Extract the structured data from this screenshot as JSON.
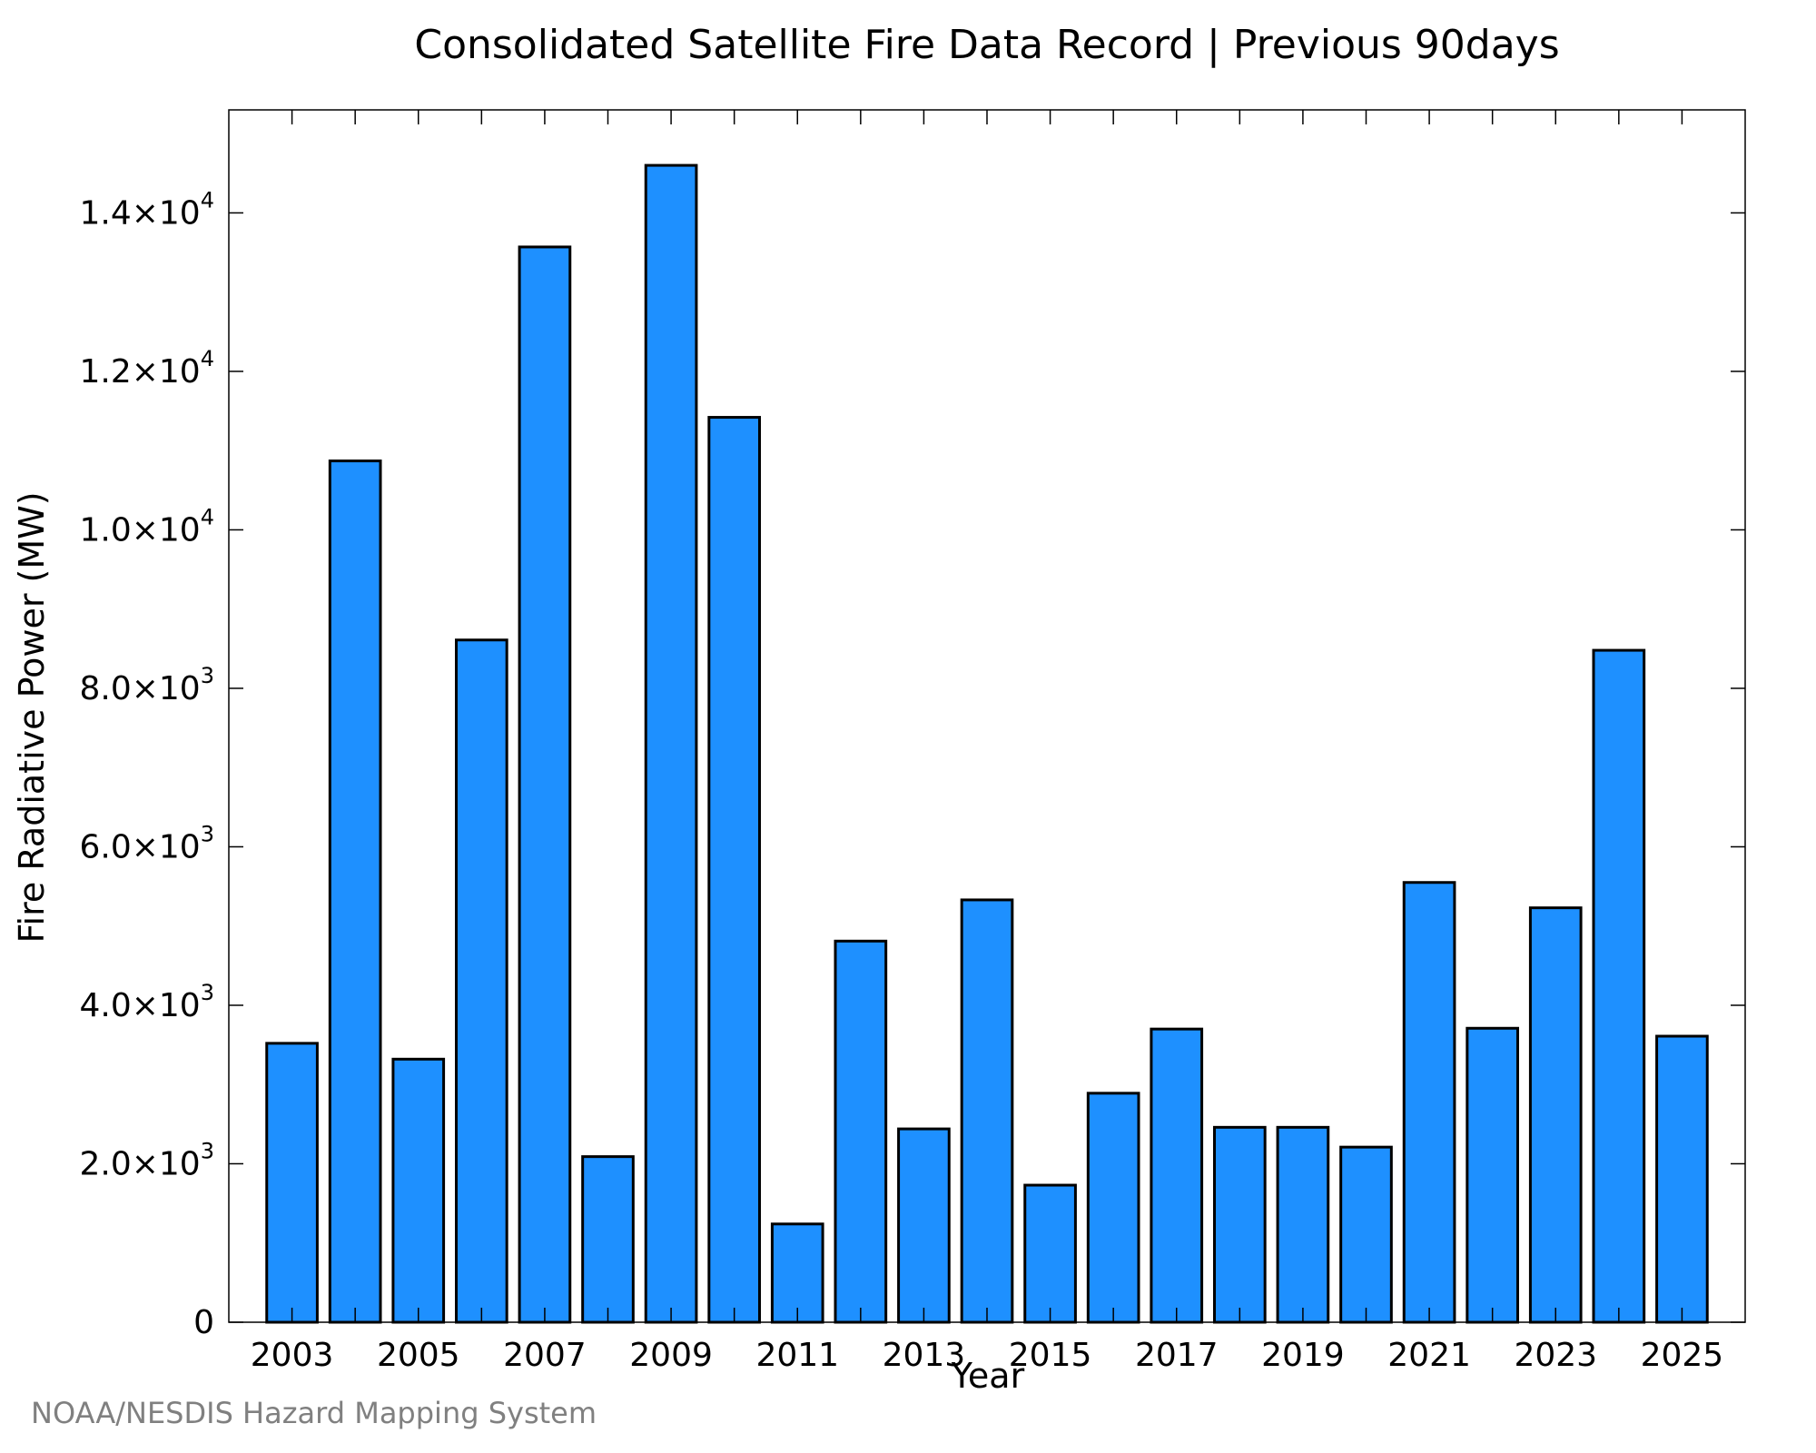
{
  "chart_data": {
    "type": "bar",
    "title": "Consolidated Satellite Fire Data Record | Previous 90days",
    "xlabel": "Year",
    "ylabel": "Fire Radiative Power (MW)",
    "categories": [
      "2003",
      "2004",
      "2005",
      "2006",
      "2007",
      "2008",
      "2009",
      "2010",
      "2011",
      "2012",
      "2013",
      "2014",
      "2015",
      "2016",
      "2017",
      "2018",
      "2019",
      "2020",
      "2021",
      "2022",
      "2023",
      "2024",
      "2025"
    ],
    "values": [
      3520,
      10870,
      3320,
      8610,
      13570,
      2090,
      14600,
      11420,
      1240,
      4810,
      2440,
      5330,
      1730,
      2890,
      3700,
      2460,
      2460,
      2210,
      5550,
      3710,
      5230,
      8480,
      3610
    ],
    "ylim": [
      0,
      15300
    ],
    "xlim": [
      2002.0,
      2026.0
    ],
    "x_tick_labels": [
      "2003",
      "2005",
      "2007",
      "2009",
      "2011",
      "2013",
      "2015",
      "2017",
      "2019",
      "2021",
      "2023",
      "2025"
    ],
    "y_ticks": [
      {
        "value": 0,
        "mantissa": "0",
        "exponent": ""
      },
      {
        "value": 2000,
        "mantissa": "2.0×10",
        "exponent": "3"
      },
      {
        "value": 4000,
        "mantissa": "4.0×10",
        "exponent": "3"
      },
      {
        "value": 6000,
        "mantissa": "6.0×10",
        "exponent": "3"
      },
      {
        "value": 8000,
        "mantissa": "8.0×10",
        "exponent": "3"
      },
      {
        "value": 10000,
        "mantissa": "1.0×10",
        "exponent": "4"
      },
      {
        "value": 12000,
        "mantissa": "1.2×10",
        "exponent": "4"
      },
      {
        "value": 14000,
        "mantissa": "1.4×10",
        "exponent": "4"
      }
    ],
    "bar_color": "#1E90FF",
    "bar_edge_color": "#000000",
    "grid": false
  },
  "credit": "NOAA/NESDIS Hazard Mapping System"
}
